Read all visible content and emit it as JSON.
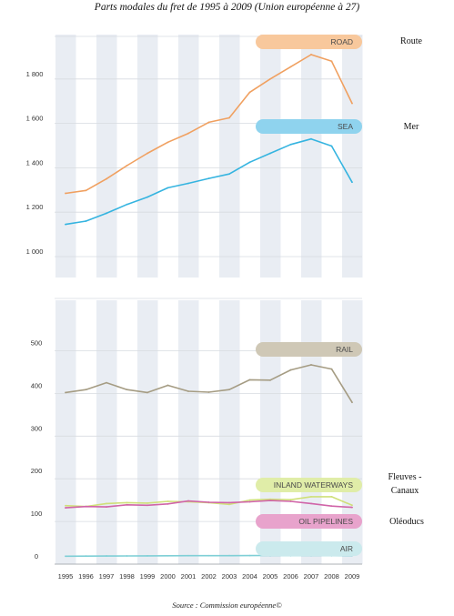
{
  "title": "Parts modales du fret de 1995 à 2009 (Union européenne à 27)",
  "source": "Source : Commission européenne©",
  "chart_data": {
    "type": "line",
    "x": [
      1995,
      1996,
      1997,
      1998,
      1999,
      2000,
      2001,
      2002,
      2003,
      2004,
      2005,
      2006,
      2007,
      2008,
      2009
    ],
    "upper_panel": {
      "yticks": [
        "1 000",
        "1 200",
        "1 400",
        "1 600",
        "1 800"
      ],
      "yrange": [
        1000,
        1900
      ]
    },
    "lower_panel": {
      "yticks": [
        "0",
        "100",
        "200",
        "300",
        "400",
        "500"
      ],
      "yrange": [
        0,
        500
      ]
    },
    "series": [
      {
        "name": "ROAD",
        "label_fr": "Route",
        "color": "#f0a060",
        "pill": "#f8c89c",
        "panel": "upper",
        "values": [
          1285,
          1298,
          1350,
          1410,
          1465,
          1515,
          1555,
          1605,
          1625,
          1740,
          1800,
          1855,
          1910,
          1880,
          1690
        ]
      },
      {
        "name": "SEA",
        "label_fr": "Mer",
        "color": "#35b4e0",
        "pill": "#8fd3ee",
        "panel": "upper",
        "values": [
          1145,
          1160,
          1195,
          1235,
          1268,
          1310,
          1330,
          1352,
          1372,
          1425,
          1465,
          1505,
          1530,
          1498,
          1335
        ]
      },
      {
        "name": "RAIL",
        "label_fr": "",
        "color": "#a59c83",
        "pill": "#cfc8b6",
        "panel": "lower",
        "values": [
          385,
          392,
          408,
          392,
          385,
          402,
          388,
          386,
          392,
          415,
          414,
          438,
          450,
          440,
          362
        ]
      },
      {
        "name": "INLAND WATERWAYS",
        "label_fr": "Fleuves - Canaux",
        "color": "#cfe07a",
        "pill": "#e0eda8",
        "panel": "lower",
        "values": [
          120,
          118,
          125,
          127,
          126,
          130,
          129,
          127,
          123,
          133,
          135,
          134,
          141,
          141,
          121
        ]
      },
      {
        "name": "OIL PIPELINES",
        "label_fr": "Oléoducs",
        "color": "#d064a8",
        "pill": "#e8a3cc",
        "panel": "lower",
        "values": [
          115,
          118,
          117,
          122,
          121,
          124,
          131,
          128,
          127,
          129,
          132,
          130,
          125,
          119,
          116
        ]
      },
      {
        "name": "AIR",
        "label_fr": "",
        "color": "#7fcfd6",
        "pill": "#cbeaed",
        "panel": "lower",
        "values": [
          1.5,
          1.7,
          2,
          2.2,
          2.4,
          2.6,
          2.7,
          2.7,
          2.8,
          3,
          3.1,
          3.2,
          3.3,
          3.2,
          2.9
        ]
      }
    ]
  }
}
